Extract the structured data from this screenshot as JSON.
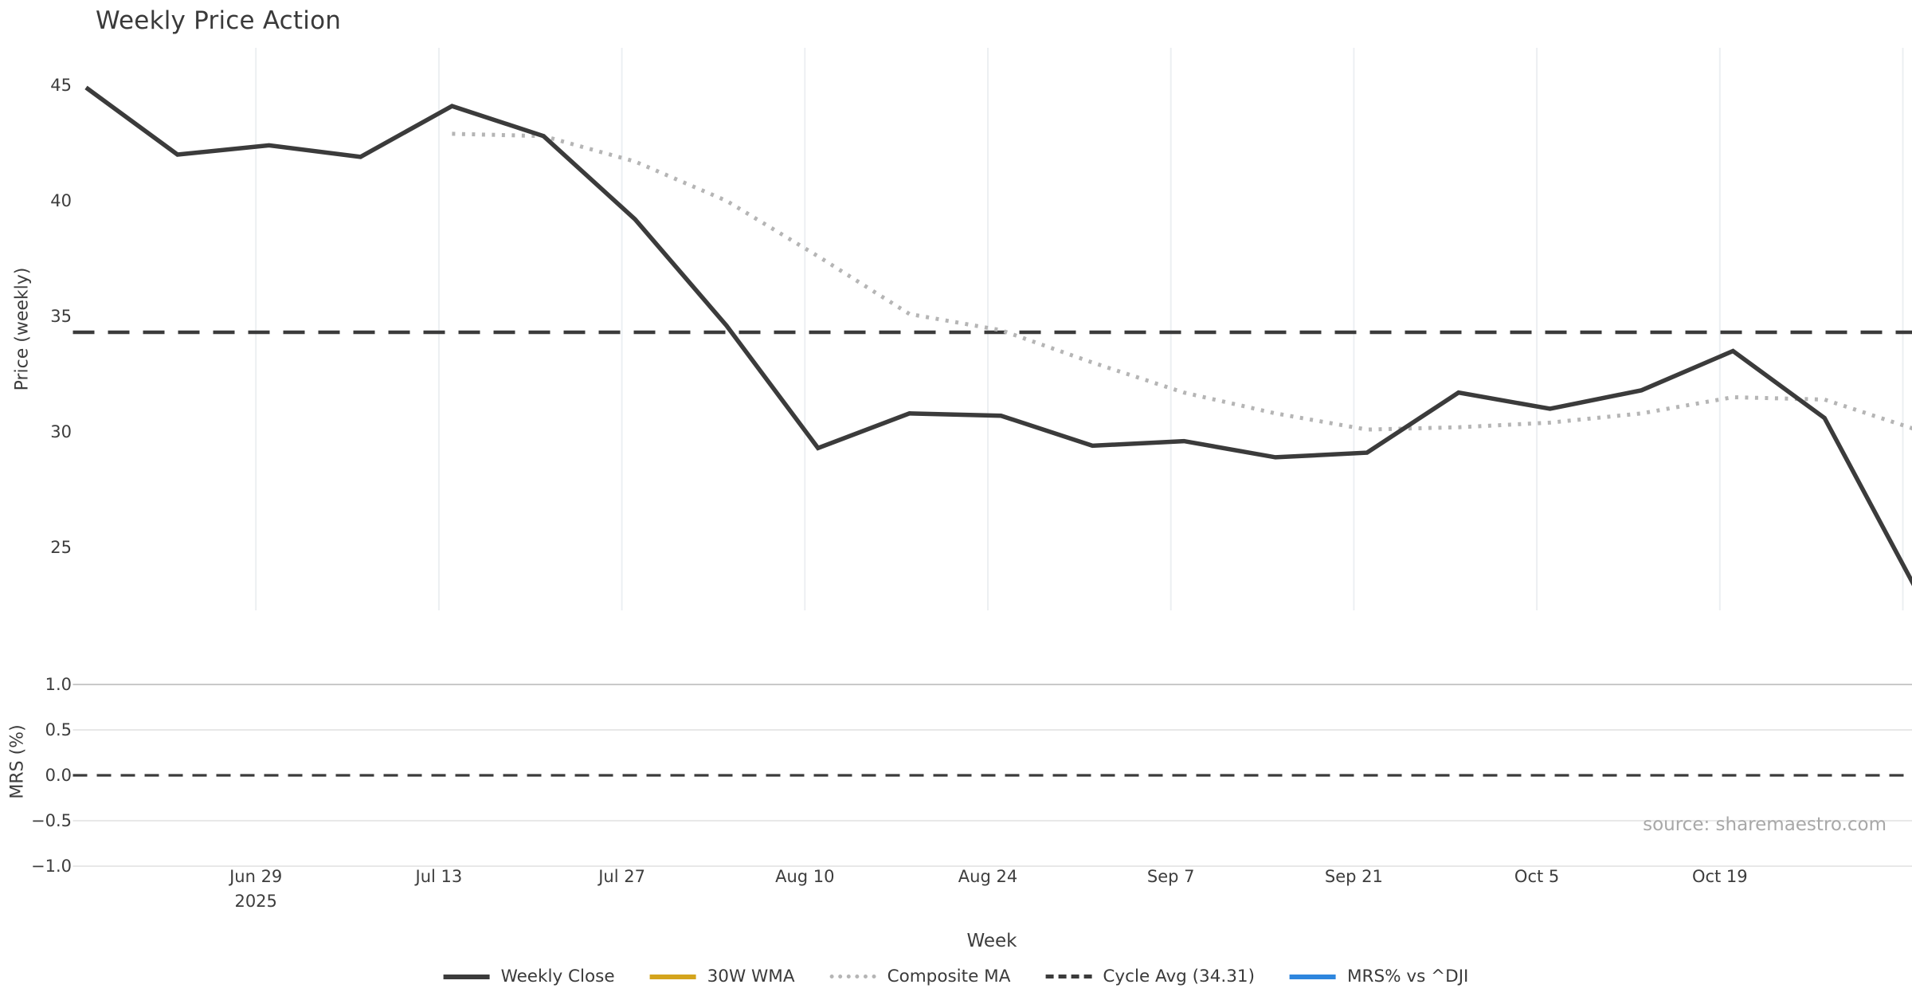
{
  "title": "Weekly Price Action",
  "source_note": "source: sharemaestro.com",
  "chart_data": {
    "type": "line",
    "title": "Weekly Price Action",
    "xlabel": "Week",
    "x_axis": {
      "tick_labels": [
        "Jun 29",
        "Jul 13",
        "Jul 27",
        "Aug 10",
        "Aug 24",
        "Sep 7",
        "Sep 21",
        "Oct 5",
        "Oct 19"
      ],
      "first_tick_year": "2025",
      "tick_interval": "2 weeks",
      "points_per_tick": 2,
      "grid": "vertical-light"
    },
    "price_panel": {
      "ylabel": "Price (weekly)",
      "yticks": [
        45,
        40,
        35,
        30,
        25
      ],
      "ylim": [
        22.2,
        46.6
      ],
      "series": [
        {
          "name": "Weekly Close",
          "color": "#3b3b3b",
          "style": "solid",
          "start_week_index": 0,
          "values": [
            44.9,
            42.0,
            42.4,
            41.9,
            44.1,
            42.8,
            39.2,
            34.6,
            29.3,
            30.8,
            30.7,
            29.4,
            29.6,
            28.9,
            29.1,
            31.7,
            31.0,
            31.8,
            33.5,
            30.6,
            23.2
          ]
        },
        {
          "name": "30W WMA",
          "color": "#d4a41c",
          "style": "solid",
          "start_week_index": 0,
          "values": [],
          "visible_in_plot": false
        },
        {
          "name": "Composite MA",
          "color": "#b5b5b5",
          "style": "dotted",
          "start_week_index": 4,
          "values": [
            42.9,
            42.8,
            41.7,
            40.0,
            37.6,
            35.1,
            34.4,
            33.0,
            31.7,
            30.8,
            30.1,
            30.2,
            30.4,
            30.8,
            31.5,
            31.4,
            30.1
          ]
        },
        {
          "name": "Cycle Avg",
          "color": "#3b3b3b",
          "style": "dashed",
          "type": "hline",
          "value": 34.31
        }
      ]
    },
    "mrs_panel": {
      "ylabel": "MRS (%)",
      "yticks": [
        "1.0",
        "0.5",
        "0.0",
        "−0.5",
        "−1.0"
      ],
      "ytick_values": [
        1.0,
        0.5,
        0.0,
        -0.5,
        -1.0
      ],
      "ylim": [
        -1.3,
        1.35
      ],
      "grid": "horizontal-light",
      "series": [
        {
          "name": "MRS% vs ^DJI",
          "color": "#2e86de",
          "style": "solid",
          "values": [],
          "visible_in_plot": false
        },
        {
          "name": "Zero line",
          "color": "#3b3b3b",
          "style": "dashed",
          "type": "hline",
          "value": 0.0
        }
      ]
    },
    "legend": {
      "position": "bottom-center",
      "items": [
        {
          "label": "Weekly Close",
          "color": "#3b3b3b",
          "style": "solid"
        },
        {
          "label": "30W WMA",
          "color": "#d4a41c",
          "style": "solid"
        },
        {
          "label": "Composite MA",
          "color": "#b5b5b5",
          "style": "dotted"
        },
        {
          "label": "Cycle Avg (34.31)",
          "color": "#3b3b3b",
          "style": "dashed"
        },
        {
          "label": "MRS% vs ^DJI",
          "color": "#2e86de",
          "style": "solid"
        }
      ]
    },
    "colors": {
      "background": "#ffffff",
      "text": "#3d3d3d",
      "grid_vertical": "#eceff2",
      "grid_horizontal_major": "#c9c9c9",
      "grid_horizontal_minor": "#e8e8e8",
      "source_text": "#a8a8a8"
    }
  }
}
